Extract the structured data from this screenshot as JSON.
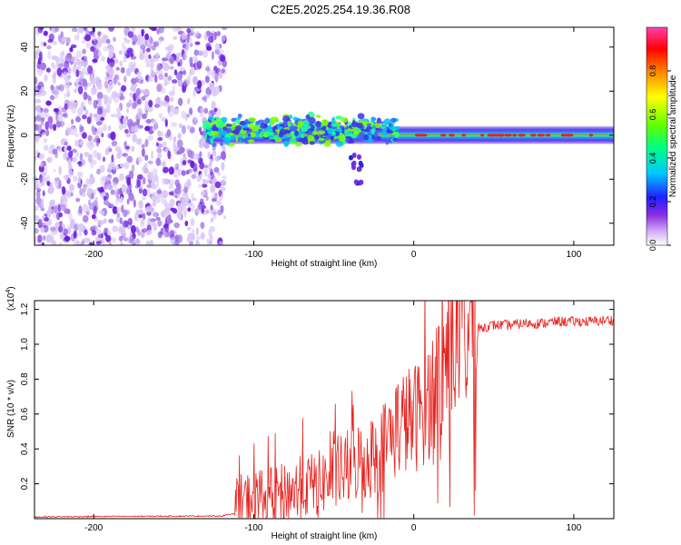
{
  "title": "C2E5.2025.254.19.36.R08",
  "colors": {
    "scatter_faint": "#d9c6f6",
    "scatter_mid": "#a47be8",
    "scatter_dark": "#6a1de0",
    "snr_line": "#e8231f",
    "axis": "#000000"
  },
  "chart_data": [
    {
      "type": "heatmap",
      "name": "spectrogram",
      "xlabel": "Height of straight line (km)",
      "ylabel": "Frequency (Hz)",
      "xlim": [
        -237,
        125
      ],
      "ylim": [
        -50,
        49
      ],
      "xticks": [
        -200,
        -100,
        0,
        100
      ],
      "xtick_labels": [
        "-200",
        "-100",
        "0",
        "100"
      ],
      "yticks": [
        -40,
        -20,
        0,
        20,
        40
      ],
      "ytick_labels": [
        "-40",
        "-20",
        "0",
        "20",
        "40"
      ],
      "noise_region_x": [
        -237,
        -118
      ],
      "signal_band_x": [
        -130,
        125
      ],
      "signal_center_freq": 0,
      "signal_band_width_hz": [
        6,
        4
      ],
      "colorbar": {
        "label": "Normalized spectral amplitude",
        "range": [
          0.0,
          1.0
        ],
        "ticks": [
          0.0,
          0.2,
          0.4,
          0.6,
          0.8
        ],
        "tick_labels": [
          "0.0",
          "0.2",
          "0.4",
          "0.6",
          "0.8"
        ]
      }
    },
    {
      "type": "line",
      "name": "snr",
      "xlabel": "Height of straight line (km)",
      "ylabel": "SNR (10 * v/v)",
      "multiplier_label": "(x10",
      "multiplier_exp": "4",
      "multiplier_close": ")",
      "xlim": [
        -237,
        125
      ],
      "ylim": [
        0,
        1.25
      ],
      "xticks": [
        -200,
        -100,
        0,
        100
      ],
      "xtick_labels": [
        "-200",
        "-100",
        "0",
        "100"
      ],
      "yticks": [
        0.2,
        0.4,
        0.6,
        0.8,
        1.0,
        1.2
      ],
      "ytick_labels": [
        "0.2",
        "0.4",
        "0.6",
        "0.8",
        "1.0",
        "1.2"
      ],
      "series": [
        {
          "name": "SNR",
          "x": [
            -237,
            -200,
            -150,
            -120,
            -112,
            -108,
            -100,
            -90,
            -80,
            -70,
            -60,
            -50,
            -40,
            -35,
            -30,
            -25,
            -20,
            -15,
            -10,
            -5,
            0,
            5,
            10,
            15,
            20,
            25,
            30,
            35,
            40,
            50,
            60,
            70,
            80,
            90,
            100,
            110,
            125
          ],
          "values": [
            0.01,
            0.012,
            0.014,
            0.015,
            0.03,
            0.1,
            0.12,
            0.13,
            0.15,
            0.18,
            0.2,
            0.24,
            0.3,
            0.33,
            0.34,
            0.36,
            0.4,
            0.48,
            0.54,
            0.56,
            0.57,
            0.63,
            0.7,
            0.8,
            0.92,
            1.02,
            1.05,
            1.07,
            1.09,
            1.11,
            1.11,
            1.12,
            1.12,
            1.13,
            1.13,
            1.13,
            1.14
          ]
        }
      ]
    }
  ]
}
